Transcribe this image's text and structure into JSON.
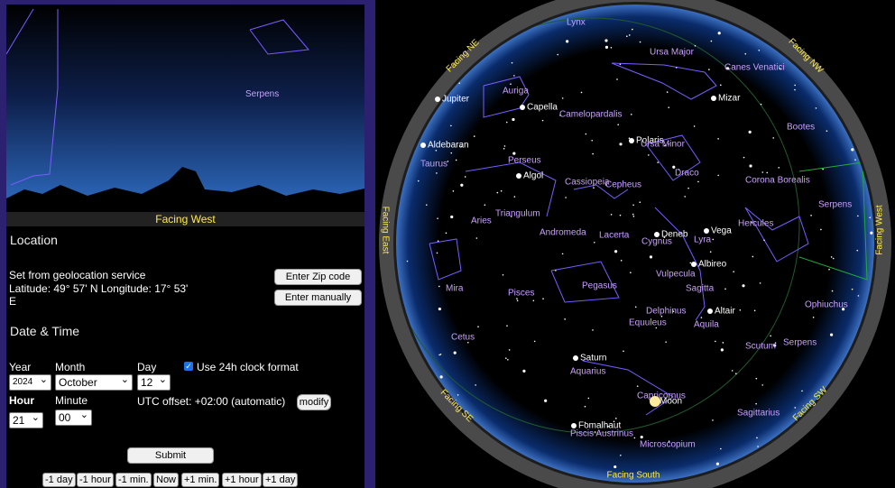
{
  "horizon": {
    "constellation": "Serpens",
    "facing": "Facing West"
  },
  "location": {
    "title": "Location",
    "source": "Set from geolocation service",
    "coordinates": "Latitude: 49° 57' N Longitude: 17° 53' E",
    "buttons": [
      "Enter Zip code",
      "Enter manually"
    ]
  },
  "datetime": {
    "title": "Date & Time",
    "year_label": "Year",
    "year": "2024",
    "month_label": "Month",
    "month": "October",
    "day_label": "Day",
    "day": "12",
    "clock_format": "Use 24h clock format",
    "hour_label": "Hour",
    "hour": "21",
    "minute_label": "Minute",
    "minute": "00",
    "utc_offset": "UTC offset: +02:00 (automatic)",
    "modify": "modify",
    "submit": "Submit",
    "steps": [
      "-1 day",
      "-1 hour",
      "-1 min.",
      "Now",
      "+1 min.",
      "+1 hour",
      "+1 day"
    ]
  },
  "sky_map": {
    "directions": [
      "Facing NE",
      "Facing NW",
      "Facing East",
      "Facing West",
      "Facing SE",
      "Facing SW",
      "Facing South"
    ],
    "labels": [
      "Lynx",
      "Ursa Major",
      "Canes Venatici",
      "Auriga",
      "Jupiter",
      "Capella",
      "Mizar",
      "Camelopardalis",
      "Bootes",
      "Aldebaran",
      "Polaris",
      "Ursa Minor",
      "Perseus",
      "Taurus",
      "Algol",
      "Draco",
      "Cassiopeia",
      "Cepheus",
      "Corona Borealis",
      "Serpens",
      "Triangulum",
      "Aries",
      "Andromeda",
      "Lacerta",
      "Deneb",
      "Cygnus",
      "Vega",
      "Lyra",
      "Hercules",
      "Vulpecula",
      "Albireo",
      "Sagitta",
      "Pegasus",
      "Mira",
      "Pisces",
      "Ophiuchus",
      "Delphinus",
      "Altair",
      "Equuleus",
      "Aquila",
      "Cetus",
      "Serpens",
      "Scutum",
      "Saturn",
      "Aquarius",
      "Capricornus",
      "Moon",
      "Sagittarius",
      "Fomalhaut",
      "Piscis Austrinus",
      "Microscopium"
    ]
  }
}
